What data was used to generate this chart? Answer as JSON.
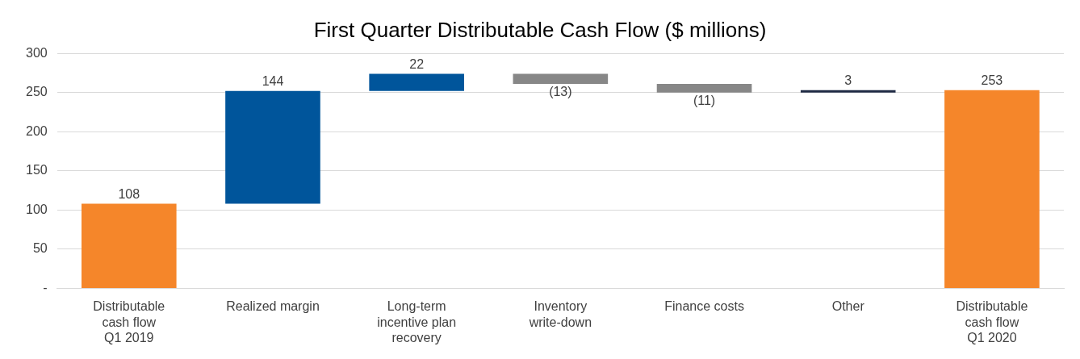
{
  "chart_data": {
    "type": "bar",
    "title": "First Quarter Distributable Cash Flow ($ millions)",
    "categories": [
      "Distributable\ncash flow\nQ1 2019",
      "Realized margin",
      "Long-term\nincentive plan\nrecovery",
      "Inventory\nwrite-down",
      "Finance costs",
      "Other",
      "Distributable\ncash flow\nQ1 2020"
    ],
    "values": [
      108,
      144,
      22,
      -13,
      -11,
      3,
      253
    ],
    "base": [
      0,
      108,
      252,
      274,
      261,
      250,
      0
    ],
    "colors": [
      "#f5862a",
      "#00559b",
      "#00559b",
      "#878787",
      "#878787",
      "#1f2a44",
      "#f5862a"
    ],
    "value_labels": [
      "108",
      "144",
      "22",
      "(13)",
      "(11)",
      "3",
      "253"
    ],
    "ylim": [
      0,
      300
    ],
    "yticks": [
      {
        "value": 0,
        "label": "-"
      },
      50,
      100,
      150,
      200,
      250,
      300
    ],
    "grid": "y",
    "legend": false
  }
}
